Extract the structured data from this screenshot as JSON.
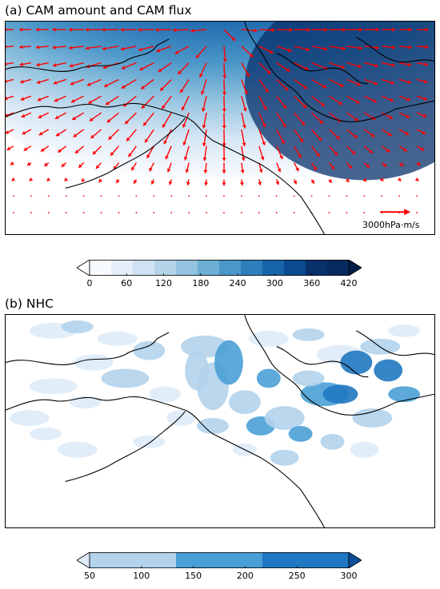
{
  "panels": [
    {
      "title": "(a) CAM amount and CAM flux",
      "vector_reference_label": "3000hPa·m/s",
      "vector_color": "#ff0000",
      "colorbar": {
        "ticks": [
          "0",
          "60",
          "120",
          "180",
          "240",
          "300",
          "360",
          "420"
        ],
        "colors": [
          "#f7fbff",
          "#e3eef9",
          "#cfe1f2",
          "#b5d4e9",
          "#93c3df",
          "#6daed5",
          "#4b97c9",
          "#2f7ebc",
          "#1864aa",
          "#0a4a90",
          "#08306b",
          "#062a5e",
          "#041f47"
        ],
        "extend": "max"
      }
    },
    {
      "title": "(b) NHC",
      "colorbar": {
        "ticks": [
          "50",
          "100",
          "150",
          "200",
          "250",
          "300"
        ],
        "colors": [
          "#deebf7",
          "#b3d3ec",
          "#4aa0d6",
          "#1f78c1",
          "#0c4f98"
        ],
        "extend": "both"
      }
    }
  ]
}
